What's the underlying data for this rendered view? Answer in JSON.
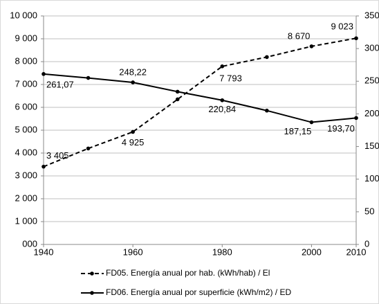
{
  "chart_data": {
    "type": "line",
    "x": [
      1940,
      1950,
      1960,
      1970,
      1980,
      1990,
      2000,
      2010
    ],
    "xlim": [
      1940,
      2010
    ],
    "xticks": [
      1940,
      1960,
      1980,
      2000,
      2010
    ],
    "ylim": [
      0,
      10000
    ],
    "yticks": [
      {
        "value": 0,
        "label": "000"
      },
      {
        "value": 1000,
        "label": "1 000"
      },
      {
        "value": 2000,
        "label": "2 000"
      },
      {
        "value": 3000,
        "label": "3 000"
      },
      {
        "value": 4000,
        "label": "4 000"
      },
      {
        "value": 5000,
        "label": "5 000"
      },
      {
        "value": 6000,
        "label": "6 000"
      },
      {
        "value": 7000,
        "label": "7 000"
      },
      {
        "value": 8000,
        "label": "8 000"
      },
      {
        "value": 9000,
        "label": "9 000"
      },
      {
        "value": 10000,
        "label": "10 000"
      }
    ],
    "y2lim": [
      0,
      350
    ],
    "y2ticks": [
      0,
      50,
      100,
      150,
      200,
      250,
      300,
      350
    ],
    "grid": true,
    "legend": "bottom",
    "series": [
      {
        "name": "FD05. Energía anual por hab. (kWh/hab) / El",
        "color": "#000000",
        "dash": true,
        "values": [
          3405,
          4200,
          4925,
          6350,
          7793,
          8200,
          8670,
          9023
        ],
        "value_labels": [
          "3 405",
          null,
          "4 925",
          null,
          "7 793",
          null,
          "8 670",
          "9 023"
        ]
      },
      {
        "name": "FD06. Energía anual por superficie (kWh/m2) / ED",
        "color": "#000000",
        "axis": "y2",
        "values": [
          261.07,
          255,
          248.22,
          234,
          220.84,
          205,
          187.15,
          193.7
        ],
        "value_labels": [
          "261,07",
          null,
          "248,22",
          null,
          "220,84",
          null,
          "187,15",
          "193,70"
        ]
      }
    ]
  }
}
